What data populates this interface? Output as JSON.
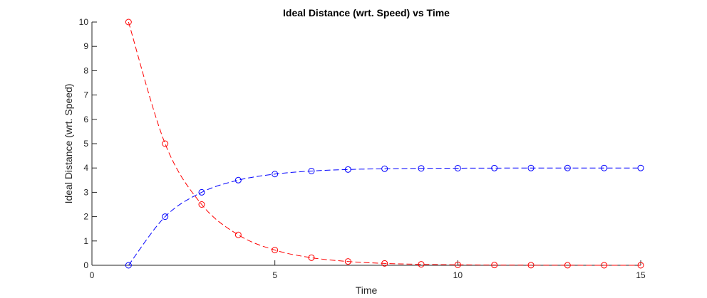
{
  "chart_data": {
    "type": "line",
    "title": "Ideal Distance (wrt. Speed) vs Time",
    "xlabel": "Time",
    "ylabel": "Ideal Distance (wrt. Speed)",
    "xlim": [
      0,
      15
    ],
    "ylim": [
      0,
      10
    ],
    "xticks": [
      0,
      5,
      10,
      15
    ],
    "yticks": [
      0,
      1,
      2,
      3,
      4,
      5,
      6,
      7,
      8,
      9,
      10
    ],
    "grid": false,
    "legend": "none",
    "series": [
      {
        "color": "#0000ff",
        "line_style": "dashed",
        "marker": "circle",
        "x": [
          1,
          2,
          3,
          4,
          5,
          6,
          7,
          8,
          9,
          10,
          11,
          12,
          13,
          14,
          15
        ],
        "values": [
          0,
          2,
          3,
          3.5,
          3.75,
          3.875,
          3.9375,
          3.96875,
          3.984375,
          3.9921875,
          3.99609375,
          3.998046875,
          3.9990234375,
          3.99951171875,
          3.999755859375
        ]
      },
      {
        "color": "#ff0000",
        "line_style": "dashed",
        "marker": "circle",
        "x": [
          1,
          2,
          3,
          4,
          5,
          6,
          7,
          8,
          9,
          10,
          11,
          12,
          13,
          14,
          15
        ],
        "values": [
          10,
          5,
          2.5,
          1.25,
          0.625,
          0.3125,
          0.15625,
          0.078125,
          0.0390625,
          0.01953125,
          0.009765625,
          0.0048828125,
          0.00244140625,
          0.001220703125,
          0.0006103515625
        ]
      }
    ]
  }
}
